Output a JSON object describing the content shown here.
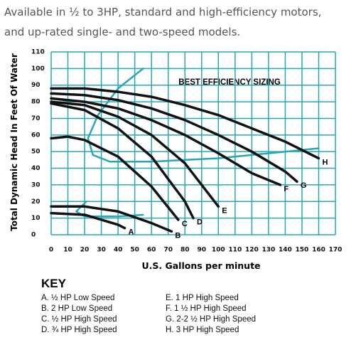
{
  "intro": [
    "Available in ½ to 3HP, standard and high-efficiency motors,",
    "and up-rated single- and two-speed models."
  ],
  "chart_data": {
    "type": "line",
    "title": "BEST EFFICIENCY SIZING",
    "x_label": "U.S. Gallons per minute",
    "y_label": "Total Dynamic Head In Feet Of Water",
    "xlim": [
      0,
      170
    ],
    "ylim": [
      0,
      110
    ],
    "xticks": [
      0,
      10,
      20,
      30,
      40,
      50,
      60,
      70,
      80,
      90,
      100,
      110,
      120,
      130,
      140,
      150,
      160,
      170
    ],
    "yticks": [
      0,
      10,
      20,
      30,
      40,
      50,
      60,
      70,
      80,
      90,
      100,
      110
    ],
    "grid": true,
    "grid_color": "#27a7b4",
    "series": [
      {
        "name": "A",
        "color": "#111111",
        "x": [
          0,
          20,
          40,
          44
        ],
        "values": [
          13,
          12,
          6,
          4
        ]
      },
      {
        "name": "B",
        "color": "#111111",
        "x": [
          0,
          20,
          40,
          60,
          72
        ],
        "values": [
          17,
          17,
          14,
          7,
          2
        ]
      },
      {
        "name": "C",
        "color": "#111111",
        "x": [
          0,
          10,
          20,
          40,
          60,
          76
        ],
        "values": [
          58,
          59,
          57,
          47,
          29,
          9
        ]
      },
      {
        "name": "D",
        "color": "#111111",
        "x": [
          0,
          20,
          40,
          60,
          80,
          85
        ],
        "values": [
          79,
          75,
          64,
          47,
          20,
          10
        ]
      },
      {
        "name": "E",
        "color": "#111111",
        "x": [
          0,
          20,
          40,
          60,
          80,
          100
        ],
        "values": [
          80,
          78,
          71,
          60,
          43,
          17
        ]
      },
      {
        "name": "F",
        "color": "#111111",
        "x": [
          0,
          20,
          40,
          60,
          80,
          100,
          120,
          137
        ],
        "values": [
          82,
          80,
          76,
          69,
          60,
          49,
          37,
          30
        ]
      },
      {
        "name": "G",
        "color": "#111111",
        "x": [
          0,
          20,
          40,
          60,
          80,
          100,
          120,
          140,
          147
        ],
        "values": [
          85,
          84,
          81,
          76,
          69,
          60,
          50,
          38,
          32
        ]
      },
      {
        "name": "H",
        "color": "#111111",
        "x": [
          0,
          20,
          40,
          60,
          80,
          100,
          120,
          140,
          160
        ],
        "values": [
          88,
          88,
          86,
          83,
          78,
          72,
          64,
          56,
          46
        ]
      }
    ],
    "efficiency_curves": [
      {
        "color": "#27a7b4",
        "x": [
          55,
          40,
          28,
          22,
          25,
          35,
          60,
          100,
          130,
          160
        ],
        "values": [
          100,
          88,
          72,
          58,
          48,
          44,
          44,
          46,
          49,
          52
        ]
      },
      {
        "color": "#27a7b4",
        "x": [
          21,
          15,
          20,
          40,
          55
        ],
        "values": [
          20,
          14,
          11,
          11,
          12
        ]
      }
    ]
  },
  "key": {
    "title": "KEY",
    "items": [
      "A. ½ HP Low Speed",
      "B. 2 HP Low Speed",
      "C. ½ HP High Speed",
      "D. ¾ HP High Speed",
      "E. 1 HP High Speed",
      "F. 1 ½ HP High Speed",
      "G. 2-2 ½ HP High Speed",
      "H. 3 HP High Speed"
    ]
  }
}
